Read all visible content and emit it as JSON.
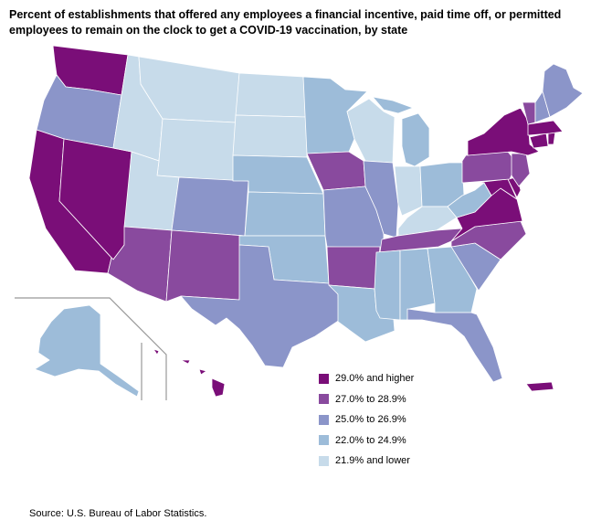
{
  "title": "Percent of establishments that offered any employees a financial incentive, paid time off, or permitted employees to remain on the clock to get a COVID-19 vaccination, by state",
  "source": "Source: U.S. Bureau of Labor Statistics.",
  "legend": [
    {
      "label": "29.0% and higher",
      "color": "#7a0e78"
    },
    {
      "label": "27.0% to 28.9%",
      "color": "#894a9e"
    },
    {
      "label": "25.0% to 26.9%",
      "color": "#8b95c9"
    },
    {
      "label": "22.0% to 24.9%",
      "color": "#9dbcd9"
    },
    {
      "label": "21.9% and lower",
      "color": "#c7dbea"
    }
  ],
  "states": {
    "WA": 0,
    "OR": 2,
    "CA": 0,
    "NV": 0,
    "ID": 4,
    "MT": 4,
    "WY": 4,
    "UT": 4,
    "AZ": 1,
    "CO": 2,
    "NM": 1,
    "ND": 4,
    "SD": 4,
    "NE": 3,
    "KS": 3,
    "OK": 3,
    "TX": 2,
    "MN": 3,
    "IA": 1,
    "MO": 2,
    "AR": 1,
    "LA": 3,
    "WI": 4,
    "IL": 2,
    "MI": 3,
    "IN": 4,
    "OH": 3,
    "KY": 4,
    "TN": 1,
    "MS": 3,
    "AL": 3,
    "GA": 3,
    "FL": 2,
    "SC": 2,
    "NC": 1,
    "VA": 0,
    "WV": 3,
    "MD": 0,
    "DE": 0,
    "PA": 1,
    "NJ": 1,
    "NY": 0,
    "CT": 0,
    "RI": 0,
    "MA": 0,
    "VT": 1,
    "NH": 2,
    "ME": 2,
    "AK": 3,
    "HI": 0,
    "PR": 0
  }
}
